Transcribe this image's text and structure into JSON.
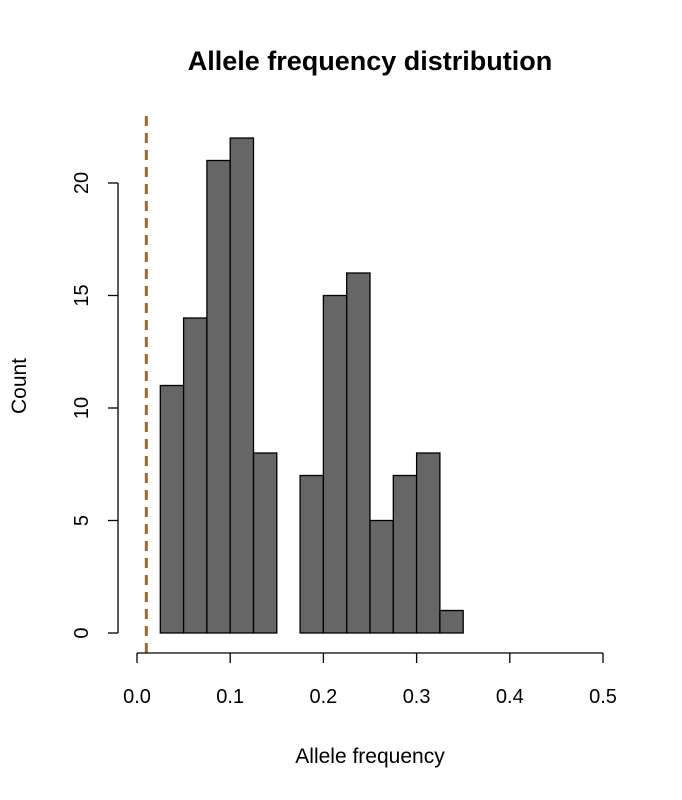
{
  "chart_data": {
    "type": "bar",
    "title": "Allele frequency distribution",
    "xlabel": "Allele frequency",
    "ylabel": "Count",
    "bin_width": 0.025,
    "bin_starts": [
      0.0,
      0.025,
      0.05,
      0.075,
      0.1,
      0.125,
      0.15,
      0.175,
      0.2,
      0.225,
      0.25,
      0.275,
      0.3,
      0.325,
      0.35,
      0.375,
      0.4,
      0.425,
      0.45,
      0.475
    ],
    "values": [
      0,
      11,
      14,
      21,
      22,
      8,
      0,
      7,
      15,
      16,
      5,
      7,
      8,
      1,
      0,
      0,
      0,
      0,
      0,
      0
    ],
    "xlim": [
      0.0,
      0.5
    ],
    "ylim": [
      0,
      22
    ],
    "x_ticks": [
      0.0,
      0.1,
      0.2,
      0.3,
      0.4,
      0.5
    ],
    "x_tick_labels": [
      "0.0",
      "0.1",
      "0.2",
      "0.3",
      "0.4",
      "0.5"
    ],
    "y_ticks": [
      0,
      5,
      10,
      15,
      20
    ],
    "y_tick_labels": [
      "0",
      "5",
      "10",
      "15",
      "20"
    ],
    "reference_line": {
      "x": 0.01,
      "style": "dashed"
    },
    "grid": false,
    "colors": {
      "bar_fill": "#666666",
      "bar_edge": "#000000",
      "reference_line": "#9a6a2e"
    }
  }
}
